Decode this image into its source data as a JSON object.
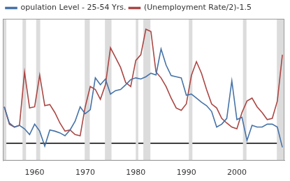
{
  "chart_data": {
    "type": "line",
    "x": [
      1954,
      1955,
      1956,
      1957,
      1958,
      1959,
      1960,
      1961,
      1962,
      1963,
      1964,
      1965,
      1966,
      1967,
      1968,
      1969,
      1970,
      1971,
      1972,
      1973,
      1974,
      1975,
      1976,
      1977,
      1978,
      1979,
      1980,
      1981,
      1982,
      1983,
      1984,
      1985,
      1986,
      1987,
      1988,
      1989,
      1990,
      1991,
      1992,
      1993,
      1994,
      1995,
      1996,
      1997,
      1998,
      1999,
      2000,
      2001,
      2002,
      2003,
      2004,
      2005,
      2006,
      2007,
      2008,
      2009
    ],
    "series": [
      {
        "name": "opulation Level - 25-54 Yrs.",
        "color": "#4572a7",
        "values": [
          1.26,
          0.7,
          0.56,
          0.62,
          0.5,
          0.3,
          0.66,
          0.42,
          -0.1,
          0.46,
          0.42,
          0.36,
          0.26,
          0.46,
          0.76,
          1.26,
          1.02,
          1.16,
          2.26,
          2.02,
          2.22,
          1.7,
          1.82,
          1.86,
          2.02,
          2.2,
          2.26,
          2.22,
          2.3,
          2.42,
          2.36,
          3.26,
          2.7,
          2.34,
          2.3,
          2.26,
          1.66,
          1.7,
          1.56,
          1.42,
          1.3,
          1.1,
          0.56,
          0.66,
          0.86,
          2.16,
          0.82,
          0.9,
          0.1,
          0.62,
          0.56,
          0.56,
          0.66,
          0.66,
          0.56,
          -0.14
        ]
      },
      {
        "name": "(Unemployment Rate/2)-1.5",
        "color": "#aa4643",
        "values": [
          1.26,
          0.66,
          0.56,
          0.62,
          2.46,
          1.22,
          1.26,
          2.36,
          1.3,
          1.34,
          1.06,
          0.7,
          0.42,
          0.46,
          0.3,
          0.26,
          1.26,
          1.96,
          1.86,
          1.52,
          2.02,
          3.3,
          2.96,
          2.62,
          2.1,
          1.96,
          2.86,
          3.06,
          3.94,
          3.86,
          2.46,
          2.26,
          1.96,
          1.56,
          1.22,
          1.14,
          1.36,
          2.34,
          2.82,
          2.42,
          1.86,
          1.36,
          1.22,
          0.86,
          0.7,
          0.56,
          0.5,
          1.06,
          1.46,
          1.56,
          1.26,
          1.06,
          0.82,
          0.86,
          1.46,
          3.06
        ]
      }
    ],
    "xlim": [
      1953.7,
      2009.4
    ],
    "xticks": [
      1960,
      1970,
      1980,
      1990,
      2000
    ],
    "ylim": [
      -0.6,
      4.3
    ],
    "yticks": [
      0
    ],
    "grid": true,
    "legend": "top-left",
    "tick_labels": "x",
    "recessions": [
      {
        "start": 1953.6,
        "end": 1954.4
      },
      {
        "start": 1957.6,
        "end": 1958.3
      },
      {
        "start": 1960.3,
        "end": 1961.1
      },
      {
        "start": 1969.9,
        "end": 1970.9
      },
      {
        "start": 1973.9,
        "end": 1975.2
      },
      {
        "start": 1980.0,
        "end": 1980.5
      },
      {
        "start": 1981.5,
        "end": 1982.9
      },
      {
        "start": 1990.5,
        "end": 1991.2
      },
      {
        "start": 2001.2,
        "end": 2001.9
      },
      {
        "start": 2007.9,
        "end": 2009.5
      }
    ]
  }
}
